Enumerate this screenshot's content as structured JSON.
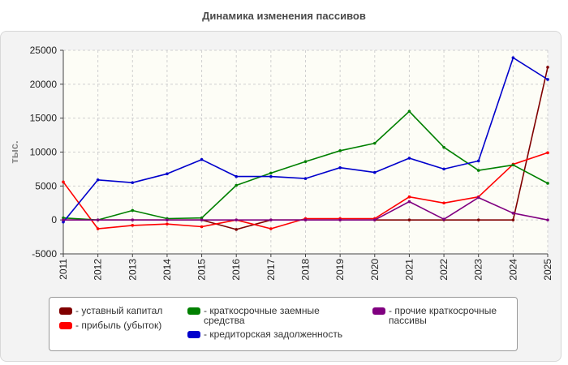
{
  "chart_data": {
    "type": "line",
    "title": "Динамика изменения пассивов",
    "ylabel": "тыс.",
    "xlabel": "",
    "x": [
      "2011",
      "2012",
      "2013",
      "2014",
      "2015",
      "2016",
      "2017",
      "2018",
      "2019",
      "2020",
      "2021",
      "2022",
      "2023",
      "2024",
      "2025"
    ],
    "ylim": [
      -5000,
      25000
    ],
    "yticks": [
      -5000,
      0,
      5000,
      10000,
      15000,
      20000,
      25000
    ],
    "ytick_labels": [
      "-5000",
      "0",
      "5000",
      "10000",
      "15000",
      "20000",
      "25000"
    ],
    "grid": true,
    "legend_position": "bottom",
    "series": [
      {
        "name": "- уставный капитал",
        "color": "#800000",
        "values": [
          0,
          0,
          0,
          0,
          0,
          -1400,
          0,
          0,
          0,
          0,
          0,
          0,
          0,
          0,
          22500
        ]
      },
      {
        "name": "- прибыль (убыток)",
        "color": "#ff0000",
        "values": [
          5600,
          -1300,
          -800,
          -600,
          -1000,
          0,
          -1300,
          200,
          200,
          200,
          3400,
          2500,
          3400,
          8200,
          9900
        ]
      },
      {
        "name": "- краткосрочные заемные средства",
        "color": "#008000",
        "values": [
          300,
          0,
          1400,
          200,
          300,
          5100,
          6900,
          8600,
          10200,
          11300,
          16000,
          10700,
          7300,
          8100,
          5400
        ]
      },
      {
        "name": "- кредиторская задолженность",
        "color": "#0000cc",
        "values": [
          -300,
          5900,
          5500,
          6800,
          8900,
          6400,
          6400,
          6100,
          7700,
          7000,
          9100,
          7500,
          8700,
          23900,
          20700
        ]
      },
      {
        "name": "- прочие краткосрочные пассивы",
        "color": "#800080",
        "values": [
          0,
          0,
          0,
          0,
          0,
          0,
          0,
          0,
          0,
          0,
          2700,
          100,
          3300,
          1000,
          0
        ]
      }
    ]
  }
}
